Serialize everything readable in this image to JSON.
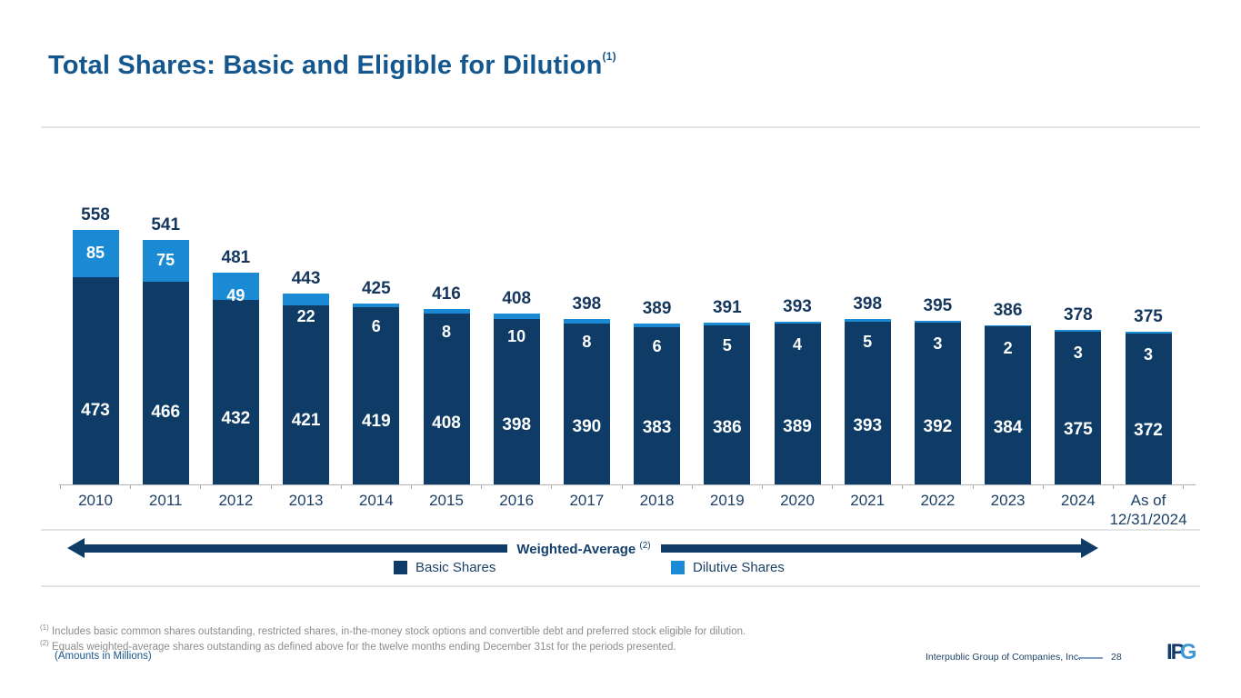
{
  "slide": {
    "title": "Total Shares: Basic and Eligible for Dilution",
    "title_superscript": "(1)"
  },
  "chart_data": {
    "type": "bar",
    "stacked": true,
    "title": "Total Shares: Basic and Eligible for Dilution",
    "categories": [
      "2010",
      "2011",
      "2012",
      "2013",
      "2014",
      "2015",
      "2016",
      "2017",
      "2018",
      "2019",
      "2020",
      "2021",
      "2022",
      "2023",
      "2024",
      "As of\n12/31/2024"
    ],
    "series": [
      {
        "name": "Basic Shares",
        "color": "#0e3c66",
        "values": [
          473,
          466,
          432,
          421,
          419,
          408,
          398,
          390,
          383,
          386,
          389,
          393,
          392,
          384,
          375,
          372
        ]
      },
      {
        "name": "Dilutive Shares",
        "color": "#1b8ad5",
        "values": [
          85,
          75,
          49,
          22,
          6,
          8,
          10,
          8,
          6,
          5,
          4,
          5,
          3,
          2,
          3,
          3
        ]
      }
    ],
    "totals": [
      558,
      541,
      481,
      443,
      425,
      416,
      408,
      398,
      389,
      391,
      393,
      398,
      395,
      386,
      378,
      375
    ],
    "units": "Millions of shares",
    "ylim": [
      100,
      580
    ],
    "y_axis_hidden": true,
    "grid": false,
    "legend_position": "bottom",
    "value_labels": "white inside segments, totals above bars"
  },
  "arrow": {
    "label": "Weighted-Average",
    "superscript": "(2)"
  },
  "footnotes": [
    {
      "marker": "(1)",
      "text": "Includes basic common shares outstanding, restricted shares, in-the-money stock options and convertible debt and preferred stock eligible for dilution."
    },
    {
      "marker": "(2)",
      "text": "Equals weighted-average shares outstanding as defined above for the twelve months ending December 31st for the periods presented."
    }
  ],
  "amounts_note": "(Amounts in Millions)",
  "footer": {
    "company": "Interpublic Group of Companies, Inc.",
    "page": "28",
    "logo_ip": "IP",
    "logo_g": "G"
  },
  "colors": {
    "navy": "#0e3c66",
    "light_blue": "#1b8ad5",
    "title_blue": "#14578e",
    "label_navy": "#16375d",
    "axis_gray": "#a9a9a9",
    "rule_gray": "#e4e4e4",
    "footnote_gray": "#8c8c8c",
    "note_blue": "#17568c",
    "logo_blue": "#3f98d6"
  }
}
